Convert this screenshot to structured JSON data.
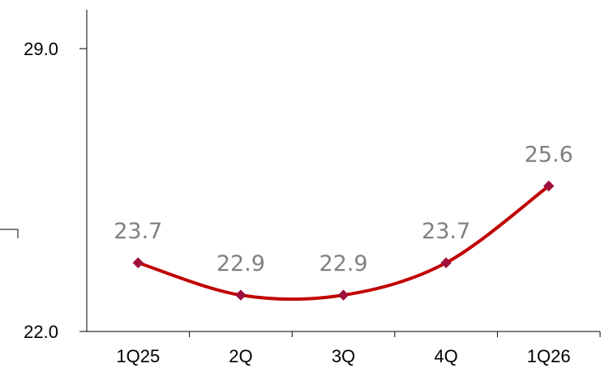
{
  "chart_data": {
    "type": "line",
    "title": "",
    "xlabel": "",
    "ylabel": "",
    "categories": [
      "1Q25",
      "2Q",
      "3Q",
      "4Q",
      "1Q26"
    ],
    "series": [
      {
        "values": [
          23.7,
          22.9,
          22.9,
          23.7,
          25.6
        ],
        "data_labels": [
          "23.7",
          "22.9",
          "22.9",
          "23.7",
          "25.6"
        ],
        "color": "#C00000",
        "marker": "diamond",
        "smooth": true
      }
    ],
    "ylim": [
      22.0,
      29.0
    ],
    "y_tick_labels": [
      "22.0",
      "29.0"
    ],
    "grid": false,
    "legend": "none"
  }
}
